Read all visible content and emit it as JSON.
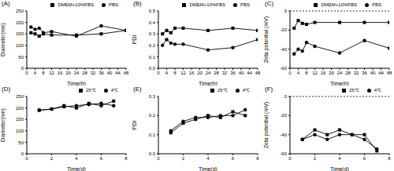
{
  "chart_data": [
    {
      "type": "line",
      "title": "(A)",
      "x_label": "Time(h)",
      "y_label": "Diameter(nm)",
      "x": [
        2,
        4,
        6,
        8,
        12,
        24,
        36,
        48
      ],
      "xlim": [
        0,
        48
      ],
      "xticks": [
        0,
        4,
        8,
        12,
        16,
        20,
        24,
        28,
        32,
        36,
        40,
        44,
        48
      ],
      "ylim": [
        0,
        250
      ],
      "yticks": [
        0,
        50,
        100,
        150,
        200,
        250
      ],
      "legend": "top",
      "series": [
        {
          "name": "PBS",
          "color": "#000000",
          "marker": "circle",
          "values": [
            180,
            170,
            175,
            155,
            160,
            140,
            185,
            165
          ]
        },
        {
          "name": "DMEM+10%FBS",
          "color": "#000000",
          "marker": "square",
          "values": [
            155,
            150,
            140,
            150,
            145,
            145,
            150,
            165
          ]
        }
      ]
    },
    {
      "type": "line",
      "title": "(B)",
      "x_label": "Time(h)",
      "y_label": "PDI",
      "x": [
        2,
        4,
        6,
        8,
        12,
        24,
        36,
        48
      ],
      "xlim": [
        0,
        48
      ],
      "xticks": [
        0,
        4,
        8,
        12,
        16,
        20,
        24,
        28,
        32,
        36,
        40,
        44,
        48
      ],
      "ylim": [
        0,
        0.5
      ],
      "yticks": [
        {
          "value": 0,
          "label": "0.0"
        },
        0.1,
        0.2,
        0.3,
        0.4,
        0.5
      ],
      "legend": "top",
      "series": [
        {
          "name": "PBS",
          "color": "#000000",
          "marker": "circle",
          "values": [
            0.2,
            0.25,
            0.22,
            0.21,
            0.21,
            0.16,
            0.18,
            0.25
          ]
        },
        {
          "name": "DMEM+10%FBS",
          "color": "#000000",
          "marker": "square",
          "values": [
            0.3,
            0.33,
            0.31,
            0.35,
            0.35,
            0.33,
            0.35,
            0.33
          ]
        }
      ]
    },
    {
      "type": "line",
      "title": "(C)",
      "x_label": "Time(h)",
      "y_label": "Zeta potential (mV)",
      "x": [
        2,
        4,
        6,
        8,
        12,
        24,
        36,
        48
      ],
      "xlim": [
        0,
        48
      ],
      "xticks": [
        0,
        4,
        8,
        12,
        16,
        20,
        24,
        28,
        32,
        36,
        40,
        44,
        48
      ],
      "ylim": [
        -60,
        0
      ],
      "yticks": [
        -60,
        -40,
        -20,
        0
      ],
      "legend": "top",
      "series": [
        {
          "name": "PBS",
          "color": "#000000",
          "marker": "circle",
          "values": [
            -45,
            -40,
            -42,
            -33,
            -37,
            -44,
            -31,
            -39
          ]
        },
        {
          "name": "DMEM+10%FBS",
          "color": "#000000",
          "marker": "square",
          "values": [
            -18,
            -10,
            -13,
            -14,
            -12,
            -12,
            -12,
            -12
          ]
        }
      ]
    },
    {
      "type": "line",
      "title": "(D)",
      "x_label": "Time(d)",
      "y_label": "Diameter(nm)",
      "x": [
        1,
        2,
        3,
        4,
        5,
        6,
        7
      ],
      "xlim": [
        0,
        8
      ],
      "xticks": [
        0,
        2,
        4,
        6,
        8
      ],
      "ylim": [
        0,
        250
      ],
      "yticks": [
        0,
        50,
        100,
        150,
        200,
        250
      ],
      "legend": "top",
      "series": [
        {
          "name": "4℃",
          "color": "#000000",
          "marker": "circle",
          "values": [
            190,
            195,
            205,
            210,
            215,
            220,
            210
          ]
        },
        {
          "name": "25℃",
          "color": "#000000",
          "marker": "square",
          "values": [
            190,
            195,
            210,
            200,
            220,
            210,
            230
          ]
        }
      ]
    },
    {
      "type": "line",
      "title": "(E)",
      "x_label": "Time(d)",
      "y_label": "PDI",
      "x": [
        1,
        2,
        3,
        4,
        5,
        6,
        7
      ],
      "xlim": [
        0,
        8
      ],
      "xticks": [
        0,
        2,
        4,
        6,
        8
      ],
      "ylim": [
        0,
        0.3
      ],
      "yticks": [
        {
          "value": 0,
          "label": "0.0"
        },
        0.1,
        0.2,
        0.3
      ],
      "legend": "top",
      "series": [
        {
          "name": "4℃",
          "color": "#000000",
          "marker": "circle",
          "values": [
            0.12,
            0.17,
            0.19,
            0.19,
            0.2,
            0.2,
            0.23
          ]
        },
        {
          "name": "25℃",
          "color": "#000000",
          "marker": "square",
          "values": [
            0.11,
            0.16,
            0.18,
            0.2,
            0.19,
            0.22,
            0.2
          ]
        }
      ]
    },
    {
      "type": "line",
      "title": "(F)",
      "x_label": "Time(d)",
      "y_label": "Zeta potential (mV)",
      "x": [
        1,
        2,
        3,
        4,
        5,
        6,
        7
      ],
      "xlim": [
        0,
        8
      ],
      "xticks": [
        0,
        2,
        4,
        6,
        8
      ],
      "ylim": [
        -60,
        0
      ],
      "yticks": [
        -60,
        -40,
        -20,
        0
      ],
      "legend": "top",
      "series": [
        {
          "name": "4℃",
          "color": "#000000",
          "marker": "circle",
          "values": [
            -45,
            -40,
            -45,
            -40,
            -40,
            -45,
            -55
          ]
        },
        {
          "name": "25℃",
          "color": "#000000",
          "marker": "square",
          "values": [
            -45,
            -35,
            -40,
            -35,
            -40,
            -40,
            -57
          ]
        }
      ]
    }
  ]
}
